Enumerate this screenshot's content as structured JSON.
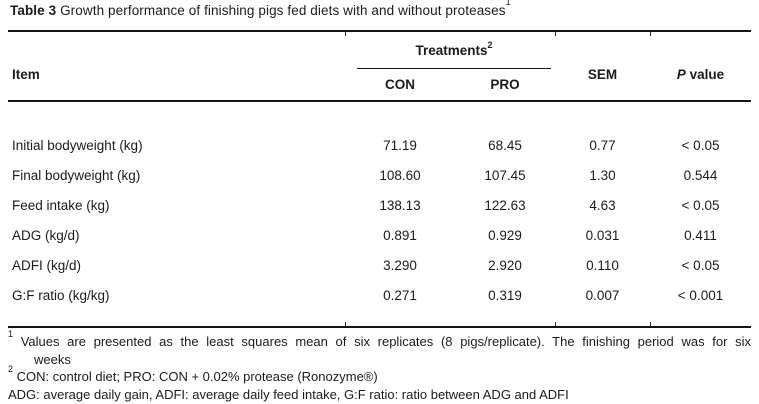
{
  "caption": {
    "label": "Table 3",
    "text": " Growth performance of finishing pigs fed diets with and without proteases",
    "sup": "1"
  },
  "table": {
    "headers": {
      "item": "Item",
      "treatments": "Treatments",
      "treatments_sup": "2",
      "con": "CON",
      "pro": "PRO",
      "sem": "SEM",
      "p_italic": "P",
      "p_rest": " value"
    },
    "rows": [
      {
        "item": "Initial bodyweight (kg)",
        "con": "71.19",
        "pro": "68.45",
        "sem": "0.77",
        "p": "< 0.05"
      },
      {
        "item": "Final bodyweight (kg)",
        "con": "108.60",
        "pro": "107.45",
        "sem": "1.30",
        "p": "0.544"
      },
      {
        "item": "Feed intake (kg)",
        "con": "138.13",
        "pro": "122.63",
        "sem": "4.63",
        "p": "< 0.05"
      },
      {
        "item": "ADG (kg/d)",
        "con": "0.891",
        "pro": "0.929",
        "sem": "0.031",
        "p": "0.411"
      },
      {
        "item": "ADFI (kg/d)",
        "con": "3.290",
        "pro": "2.920",
        "sem": "0.110",
        "p": "< 0.05"
      },
      {
        "item": "G:F ratio (kg/kg)",
        "con": "0.271",
        "pro": "0.319",
        "sem": "0.007",
        "p": "< 0.001"
      }
    ]
  },
  "footnotes": {
    "fn1_sup": "1",
    "fn1_line1": " Values are presented as the least squares mean of six replicates (8 pigs/replicate). The finishing period was for six",
    "fn1_line2": "weeks",
    "fn2_sup": "2",
    "fn2_text": " CON: control diet; PRO: CON + 0.02% protease (Ronozyme®)",
    "fn3_text": "ADG: average daily gain, ADFI: average daily feed intake, G:F ratio: ratio between ADG and ADFI"
  },
  "colors": {
    "background": "#ffffff",
    "text": "#1b1b1b",
    "rule": "#141414"
  }
}
